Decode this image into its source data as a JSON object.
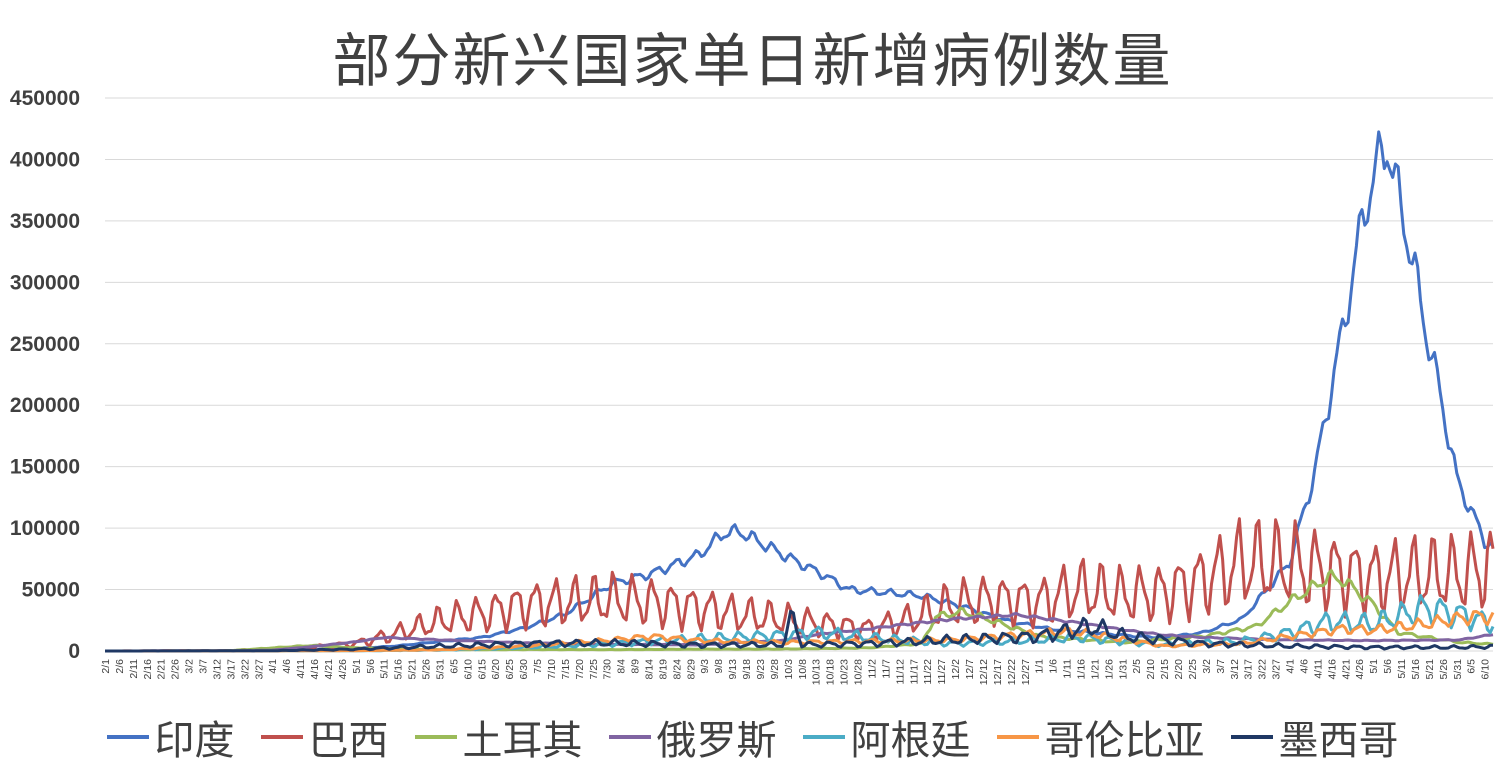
{
  "chart_data": {
    "type": "line",
    "title": "部分新兴国家单日新增病例数量",
    "xlabel": "",
    "ylabel": "",
    "ylim": [
      0,
      450000
    ],
    "yticks": [
      "0",
      "50000",
      "100000",
      "150000",
      "200000",
      "250000",
      "300000",
      "350000",
      "400000",
      "450000"
    ],
    "x_ticks": [
      "2/1",
      "2/6",
      "2/11",
      "2/16",
      "2/21",
      "2/26",
      "3/2",
      "3/7",
      "3/12",
      "3/17",
      "3/22",
      "3/27",
      "4/1",
      "4/6",
      "4/11",
      "4/16",
      "4/21",
      "4/26",
      "5/1",
      "5/6",
      "5/11",
      "5/16",
      "5/21",
      "5/26",
      "5/31",
      "6/5",
      "6/10",
      "6/15",
      "6/20",
      "6/25",
      "6/30",
      "7/5",
      "7/10",
      "7/15",
      "7/20",
      "7/25",
      "7/30",
      "8/4",
      "8/9",
      "8/14",
      "8/19",
      "8/24",
      "8/29",
      "9/3",
      "9/8",
      "9/13",
      "9/18",
      "9/23",
      "9/28",
      "10/3",
      "10/8",
      "10/13",
      "10/18",
      "10/23",
      "10/28",
      "11/2",
      "11/7",
      "11/12",
      "11/17",
      "11/22",
      "11/27",
      "12/2",
      "12/7",
      "12/12",
      "12/17",
      "12/22",
      "12/27",
      "1/1",
      "1/6",
      "1/11",
      "1/16",
      "1/21",
      "1/26",
      "1/31",
      "2/5",
      "2/10",
      "2/15",
      "2/20",
      "2/25",
      "3/2",
      "3/7",
      "3/12",
      "3/17",
      "3/22",
      "3/27",
      "4/1",
      "4/6",
      "4/11",
      "4/16",
      "4/21",
      "4/26",
      "5/1",
      "5/6",
      "5/11",
      "5/16",
      "5/21",
      "5/26",
      "5/31",
      "6/5",
      "6/10"
    ],
    "x_start": "2020-02-01",
    "x_end": "2021-06-13",
    "grid": true,
    "legend_position": "bottom",
    "series": [
      {
        "name": "印度",
        "color": "#4472C4",
        "points": [
          [
            "2020-02-01",
            0
          ],
          [
            "2020-03-15",
            100
          ],
          [
            "2020-04-01",
            500
          ],
          [
            "2020-04-15",
            1000
          ],
          [
            "2020-05-01",
            2000
          ],
          [
            "2020-05-15",
            4000
          ],
          [
            "2020-06-01",
            8000
          ],
          [
            "2020-06-15",
            11000
          ],
          [
            "2020-07-01",
            19000
          ],
          [
            "2020-07-15",
            30000
          ],
          [
            "2020-08-01",
            55000
          ],
          [
            "2020-08-15",
            63000
          ],
          [
            "2020-09-01",
            78000
          ],
          [
            "2020-09-10",
            96000
          ],
          [
            "2020-09-16",
            97000
          ],
          [
            "2020-09-25",
            86000
          ],
          [
            "2020-10-05",
            74000
          ],
          [
            "2020-10-15",
            63000
          ],
          [
            "2020-10-25",
            50000
          ],
          [
            "2020-11-05",
            48000
          ],
          [
            "2020-11-20",
            45000
          ],
          [
            "2020-12-05",
            36000
          ],
          [
            "2020-12-20",
            25000
          ],
          [
            "2021-01-05",
            18000
          ],
          [
            "2021-01-20",
            15000
          ],
          [
            "2021-02-05",
            12000
          ],
          [
            "2021-02-15",
            11000
          ],
          [
            "2021-03-01",
            15000
          ],
          [
            "2021-03-15",
            26000
          ],
          [
            "2021-03-25",
            53000
          ],
          [
            "2021-04-01",
            72000
          ],
          [
            "2021-04-10",
            145000
          ],
          [
            "2021-04-20",
            260000
          ],
          [
            "2021-04-28",
            360000
          ],
          [
            "2021-05-01",
            385000
          ],
          [
            "2021-05-06",
            414000
          ],
          [
            "2021-05-10",
            370000
          ],
          [
            "2021-05-15",
            320000
          ],
          [
            "2021-05-20",
            260000
          ],
          [
            "2021-05-25",
            210000
          ],
          [
            "2021-05-31",
            140000
          ],
          [
            "2021-06-05",
            115000
          ],
          [
            "2021-06-10",
            90000
          ],
          [
            "2021-06-13",
            84000
          ]
        ]
      },
      {
        "name": "巴西",
        "color": "#C0504D",
        "points": [
          [
            "2020-02-01",
            0
          ],
          [
            "2020-03-15",
            200
          ],
          [
            "2020-04-01",
            1500
          ],
          [
            "2020-04-15",
            3000
          ],
          [
            "2020-05-01",
            6000
          ],
          [
            "2020-05-15",
            14000
          ],
          [
            "2020-06-01",
            25000
          ],
          [
            "2020-06-15",
            30000
          ],
          [
            "2020-07-01",
            38000
          ],
          [
            "2020-07-15",
            40000
          ],
          [
            "2020-08-01",
            42000
          ],
          [
            "2020-08-15",
            40000
          ],
          [
            "2020-09-01",
            35000
          ],
          [
            "2020-09-15",
            30000
          ],
          [
            "2020-10-01",
            26000
          ],
          [
            "2020-10-15",
            22000
          ],
          [
            "2020-11-01",
            18000
          ],
          [
            "2020-11-15",
            25000
          ],
          [
            "2020-12-01",
            38000
          ],
          [
            "2020-12-15",
            42000
          ],
          [
            "2021-01-01",
            40000
          ],
          [
            "2021-01-15",
            50000
          ],
          [
            "2021-02-01",
            45000
          ],
          [
            "2021-02-15",
            48000
          ],
          [
            "2021-03-01",
            58000
          ],
          [
            "2021-03-15",
            72000
          ],
          [
            "2021-04-01",
            70000
          ],
          [
            "2021-04-15",
            65000
          ],
          [
            "2021-05-01",
            60000
          ],
          [
            "2021-05-15",
            62000
          ],
          [
            "2021-06-01",
            62000
          ],
          [
            "2021-06-13",
            68000
          ]
        ]
      },
      {
        "name": "土耳其",
        "color": "#9BBB59",
        "points": [
          [
            "2020-02-01",
            0
          ],
          [
            "2020-03-15",
            0
          ],
          [
            "2020-04-01",
            2500
          ],
          [
            "2020-04-15",
            4500
          ],
          [
            "2020-05-01",
            2500
          ],
          [
            "2020-06-01",
            1000
          ],
          [
            "2020-07-01",
            1200
          ],
          [
            "2020-08-01",
            1100
          ],
          [
            "2020-09-01",
            1500
          ],
          [
            "2020-10-01",
            1600
          ],
          [
            "2020-11-01",
            2500
          ],
          [
            "2020-11-20",
            6000
          ],
          [
            "2020-11-25",
            28000
          ],
          [
            "2020-12-05",
            32000
          ],
          [
            "2020-12-15",
            25000
          ],
          [
            "2021-01-01",
            12000
          ],
          [
            "2021-02-01",
            7000
          ],
          [
            "2021-03-01",
            12000
          ],
          [
            "2021-03-20",
            20000
          ],
          [
            "2021-04-01",
            40000
          ],
          [
            "2021-04-15",
            60000
          ],
          [
            "2021-04-20",
            58000
          ],
          [
            "2021-05-01",
            38000
          ],
          [
            "2021-05-10",
            15000
          ],
          [
            "2021-06-01",
            7000
          ],
          [
            "2021-06-13",
            5500
          ]
        ]
      },
      {
        "name": "俄罗斯",
        "color": "#8064A2",
        "points": [
          [
            "2020-02-01",
            0
          ],
          [
            "2020-03-15",
            0
          ],
          [
            "2020-04-01",
            700
          ],
          [
            "2020-04-15",
            3500
          ],
          [
            "2020-05-01",
            7500
          ],
          [
            "2020-05-11",
            11000
          ],
          [
            "2020-06-01",
            9000
          ],
          [
            "2020-07-01",
            6500
          ],
          [
            "2020-08-01",
            5500
          ],
          [
            "2020-09-01",
            5000
          ],
          [
            "2020-10-01",
            8500
          ],
          [
            "2020-10-15",
            14000
          ],
          [
            "2020-11-01",
            18000
          ],
          [
            "2020-11-15",
            22000
          ],
          [
            "2020-12-01",
            26000
          ],
          [
            "2020-12-24",
            29500
          ],
          [
            "2021-01-15",
            23000
          ],
          [
            "2021-02-01",
            17000
          ],
          [
            "2021-02-15",
            13000
          ],
          [
            "2021-03-01",
            11000
          ],
          [
            "2021-04-01",
            9000
          ],
          [
            "2021-05-01",
            8500
          ],
          [
            "2021-06-01",
            9000
          ],
          [
            "2021-06-13",
            13500
          ]
        ]
      },
      {
        "name": "阿根廷",
        "color": "#4BACC6",
        "points": [
          [
            "2020-02-01",
            0
          ],
          [
            "2020-04-01",
            100
          ],
          [
            "2020-05-01",
            200
          ],
          [
            "2020-06-01",
            800
          ],
          [
            "2020-07-01",
            3000
          ],
          [
            "2020-08-01",
            6000
          ],
          [
            "2020-09-01",
            10000
          ],
          [
            "2020-10-01",
            13000
          ],
          [
            "2020-10-15",
            15000
          ],
          [
            "2020-11-01",
            11000
          ],
          [
            "2020-12-01",
            6000
          ],
          [
            "2021-01-01",
            9000
          ],
          [
            "2021-01-15",
            11000
          ],
          [
            "2021-02-15",
            5000
          ],
          [
            "2021-03-15",
            8000
          ],
          [
            "2021-04-01",
            15000
          ],
          [
            "2021-04-15",
            24000
          ],
          [
            "2021-05-01",
            22000
          ],
          [
            "2021-05-20",
            35000
          ],
          [
            "2021-06-01",
            30000
          ],
          [
            "2021-06-13",
            22000
          ]
        ]
      },
      {
        "name": "哥伦比亚",
        "color": "#F79646",
        "points": [
          [
            "2020-02-01",
            0
          ],
          [
            "2020-04-01",
            100
          ],
          [
            "2020-05-01",
            300
          ],
          [
            "2020-06-01",
            1000
          ],
          [
            "2020-07-01",
            4000
          ],
          [
            "2020-08-01",
            9000
          ],
          [
            "2020-08-15",
            12000
          ],
          [
            "2020-09-01",
            8500
          ],
          [
            "2020-10-01",
            7000
          ],
          [
            "2020-11-01",
            8000
          ],
          [
            "2020-12-01",
            9000
          ],
          [
            "2021-01-10",
            16000
          ],
          [
            "2021-01-20",
            14000
          ],
          [
            "2021-02-15",
            4000
          ],
          [
            "2021-03-15",
            6000
          ],
          [
            "2021-04-01",
            12000
          ],
          [
            "2021-04-20",
            18000
          ],
          [
            "2021-05-01",
            17000
          ],
          [
            "2021-05-20",
            22000
          ],
          [
            "2021-06-05",
            28000
          ],
          [
            "2021-06-13",
            28000
          ]
        ]
      },
      {
        "name": "墨西哥",
        "color": "#1F3864",
        "points": [
          [
            "2020-02-01",
            0
          ],
          [
            "2020-04-01",
            200
          ],
          [
            "2020-05-01",
            1500
          ],
          [
            "2020-06-01",
            4000
          ],
          [
            "2020-07-01",
            6000
          ],
          [
            "2020-08-01",
            6500
          ],
          [
            "2020-09-01",
            5000
          ],
          [
            "2020-10-01",
            5000
          ],
          [
            "2020-10-05",
            28000
          ],
          [
            "2020-10-08",
            5000
          ],
          [
            "2020-11-01",
            6000
          ],
          [
            "2020-12-01",
            9000
          ],
          [
            "2021-01-01",
            12000
          ],
          [
            "2021-01-20",
            20000
          ],
          [
            "2021-02-01",
            12000
          ],
          [
            "2021-03-01",
            6000
          ],
          [
            "2021-04-01",
            4000
          ],
          [
            "2021-05-01",
            3000
          ],
          [
            "2021-06-01",
            3000
          ],
          [
            "2021-06-13",
            3500
          ]
        ]
      }
    ]
  }
}
